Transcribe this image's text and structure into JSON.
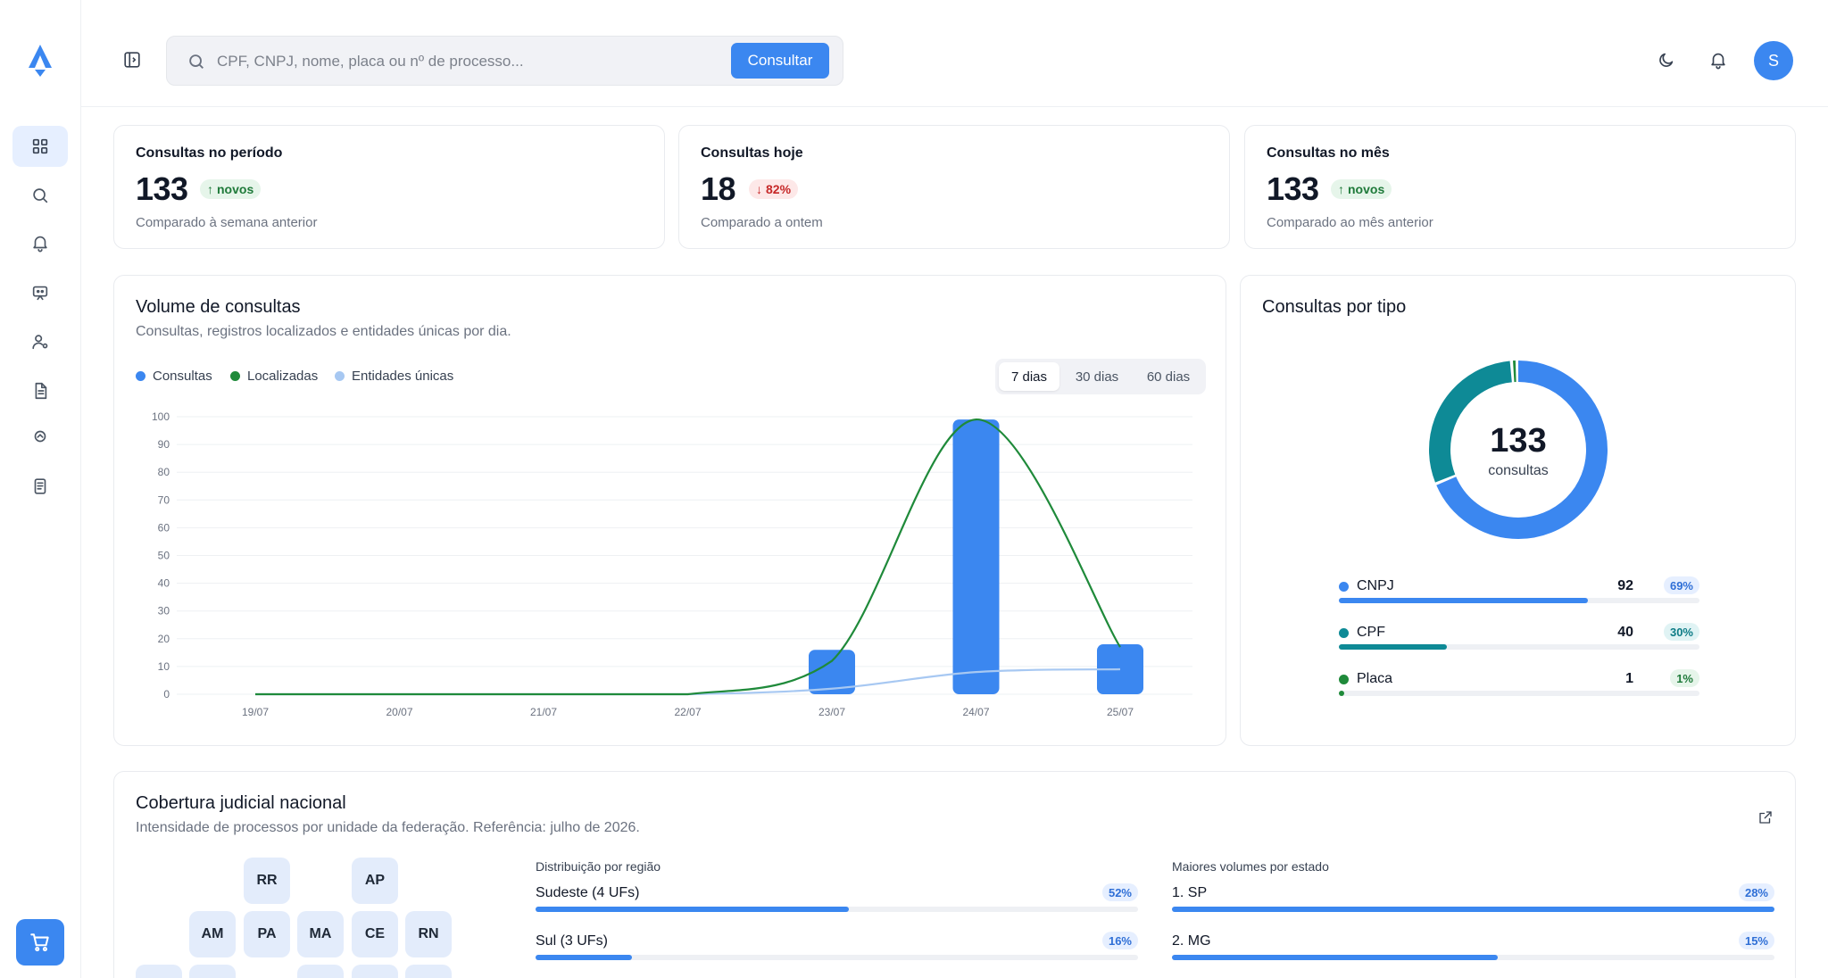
{
  "topbar": {
    "search_placeholder": "CPF, CNPJ, nome, placa ou nº de processo...",
    "search_button": "Consultar",
    "avatar_initial": "S"
  },
  "stats": [
    {
      "title": "Consultas no período",
      "value": "133",
      "badge": "novos",
      "badge_dir": "up",
      "subtitle": "Comparado à semana anterior"
    },
    {
      "title": "Consultas hoje",
      "value": "18",
      "badge": "82%",
      "badge_dir": "down",
      "subtitle": "Comparado a ontem"
    },
    {
      "title": "Consultas no mês",
      "value": "133",
      "badge": "novos",
      "badge_dir": "up",
      "subtitle": "Comparado ao mês anterior"
    }
  ],
  "volume": {
    "title": "Volume de consultas",
    "subtitle": "Consultas, registros localizados e entidades únicas por dia.",
    "legend": [
      "Consultas",
      "Localizadas",
      "Entidades únicas"
    ],
    "ranges": [
      "7 dias",
      "30 dias",
      "60 dias"
    ],
    "active_range": "7 dias"
  },
  "chart_data": {
    "type": "bar",
    "categories": [
      "19/07",
      "20/07",
      "21/07",
      "22/07",
      "23/07",
      "24/07",
      "25/07"
    ],
    "series": [
      {
        "name": "Consultas",
        "type": "bar",
        "color": "#3b87f0",
        "values": [
          0,
          0,
          0,
          0,
          16,
          99,
          18
        ]
      },
      {
        "name": "Localizadas",
        "type": "line",
        "color": "#1f8a3a",
        "values": [
          0,
          0,
          0,
          0,
          12,
          99,
          17
        ]
      },
      {
        "name": "Entidades únicas",
        "type": "line",
        "color": "#a7c8f2",
        "values": [
          0,
          0,
          0,
          0,
          2,
          8,
          9
        ]
      }
    ],
    "ylim": [
      0,
      100
    ],
    "yticks": [
      0,
      10,
      20,
      30,
      40,
      50,
      60,
      70,
      80,
      90,
      100
    ],
    "grid": true,
    "legend_position": "top-left"
  },
  "types": {
    "title": "Consultas por tipo",
    "total": "133",
    "total_label": "consultas",
    "items": [
      {
        "name": "CNPJ",
        "count": "92",
        "pct": "69%",
        "fraction": 0.69,
        "color": "#3b87f0",
        "pct_bg": "#e6efff",
        "pct_color": "#2f6fd6"
      },
      {
        "name": "CPF",
        "count": "40",
        "pct": "30%",
        "fraction": 0.3,
        "color": "#0e8a96",
        "pct_bg": "#e0f3f4",
        "pct_color": "#0e7c86"
      },
      {
        "name": "Placa",
        "count": "1",
        "pct": "1%",
        "fraction": 0.01,
        "color": "#1f8a3a",
        "pct_bg": "#e6f5ea",
        "pct_color": "#1f7a3a"
      }
    ]
  },
  "coverage": {
    "title": "Cobertura judicial nacional",
    "subtitle": "Intensidade de processos por unidade da federação. Referência: julho de 2026.",
    "ufs": [
      "RR",
      "AP",
      "AM",
      "PA",
      "MA",
      "CE",
      "RN"
    ],
    "regions_title": "Distribuição por região",
    "regions": [
      {
        "label": "Sudeste (4 UFs)",
        "pct": "52%",
        "fraction": 0.52
      },
      {
        "label": "Sul (3 UFs)",
        "pct": "16%",
        "fraction": 0.16
      }
    ],
    "states_title": "Maiores volumes por estado",
    "states": [
      {
        "label": "1. SP",
        "pct": "28%",
        "fraction": 1.0
      },
      {
        "label": "2. MG",
        "pct": "15%",
        "fraction": 0.54
      }
    ]
  }
}
